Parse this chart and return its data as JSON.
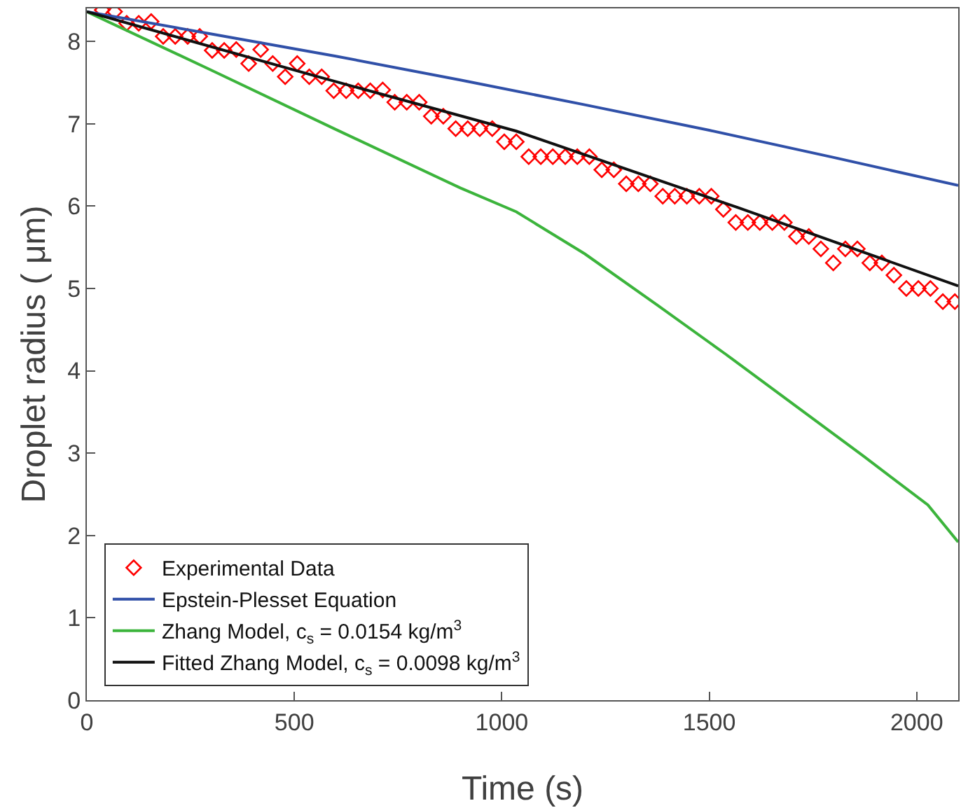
{
  "chart_data": {
    "type": "line",
    "xlabel": "Time (s)",
    "ylabel": "Droplet radius ( μm)",
    "xlim": [
      0,
      2100
    ],
    "ylim": [
      0,
      8.4
    ],
    "xticks": [
      0,
      500,
      1000,
      1500,
      2000
    ],
    "yticks": [
      0,
      1,
      2,
      3,
      4,
      5,
      6,
      7,
      8
    ],
    "grid": false,
    "legend": "bottom left",
    "line_style": "solid",
    "series": [
      {
        "name": "Experimental Data",
        "type": "scatter",
        "marker": "diamond",
        "color": "#ff0000",
        "x": [
          37,
          67,
          96,
          125,
          155,
          184,
          213,
          243,
          272,
          302,
          331,
          360,
          390,
          419,
          448,
          478,
          507,
          536,
          566,
          595,
          625,
          654,
          683,
          713,
          742,
          771,
          801,
          830,
          859,
          889,
          918,
          947,
          977,
          1006,
          1035,
          1065,
          1094,
          1123,
          1153,
          1182,
          1211,
          1241,
          1270,
          1300,
          1329,
          1358,
          1388,
          1417,
          1446,
          1476,
          1505,
          1534,
          1564,
          1593,
          1622,
          1652,
          1681,
          1710,
          1740,
          1769,
          1799,
          1828,
          1857,
          1887,
          1916,
          1945,
          1975,
          2004,
          2033,
          2063,
          2092
        ],
        "values": [
          8.38,
          8.36,
          8.22,
          8.22,
          8.24,
          8.06,
          8.06,
          8.06,
          8.06,
          7.89,
          7.89,
          7.9,
          7.73,
          7.9,
          7.73,
          7.57,
          7.73,
          7.57,
          7.57,
          7.4,
          7.4,
          7.4,
          7.4,
          7.41,
          7.26,
          7.26,
          7.26,
          7.09,
          7.09,
          6.94,
          6.94,
          6.94,
          6.94,
          6.78,
          6.78,
          6.6,
          6.6,
          6.6,
          6.6,
          6.6,
          6.6,
          6.44,
          6.44,
          6.27,
          6.27,
          6.27,
          6.12,
          6.12,
          6.12,
          6.12,
          6.12,
          5.96,
          5.8,
          5.8,
          5.8,
          5.8,
          5.8,
          5.63,
          5.63,
          5.48,
          5.31,
          5.48,
          5.48,
          5.31,
          5.31,
          5.16,
          5.0,
          5.0,
          5.0,
          4.84,
          4.84
        ]
      },
      {
        "name": "Epstein-Plesset Equation",
        "color": "#3050a8",
        "x": [
          0,
          300,
          600,
          900,
          1200,
          1500,
          1800,
          2100
        ],
        "values": [
          8.36,
          8.09,
          7.82,
          7.53,
          7.23,
          6.92,
          6.59,
          6.25
        ]
      },
      {
        "name": "Zhang Model, c$_{s}$ = 0.0154 kg/m$^{3}$",
        "color": "#3cb43c",
        "x": [
          0,
          300,
          600,
          900,
          1035,
          1200,
          1374,
          1540,
          1712,
          1870,
          2027,
          2100
        ],
        "values": [
          8.36,
          7.65,
          6.93,
          6.22,
          5.93,
          5.42,
          4.8,
          4.2,
          3.56,
          2.97,
          2.37,
          1.92
        ]
      },
      {
        "name": "Fitted Zhang Model, c$_{s}$ = 0.0098 kg/m$^{3}$",
        "color": "#111111",
        "x": [
          0,
          550,
          1035,
          1570,
          2100
        ],
        "values": [
          8.36,
          7.58,
          6.91,
          5.98,
          5.03
        ]
      }
    ]
  }
}
